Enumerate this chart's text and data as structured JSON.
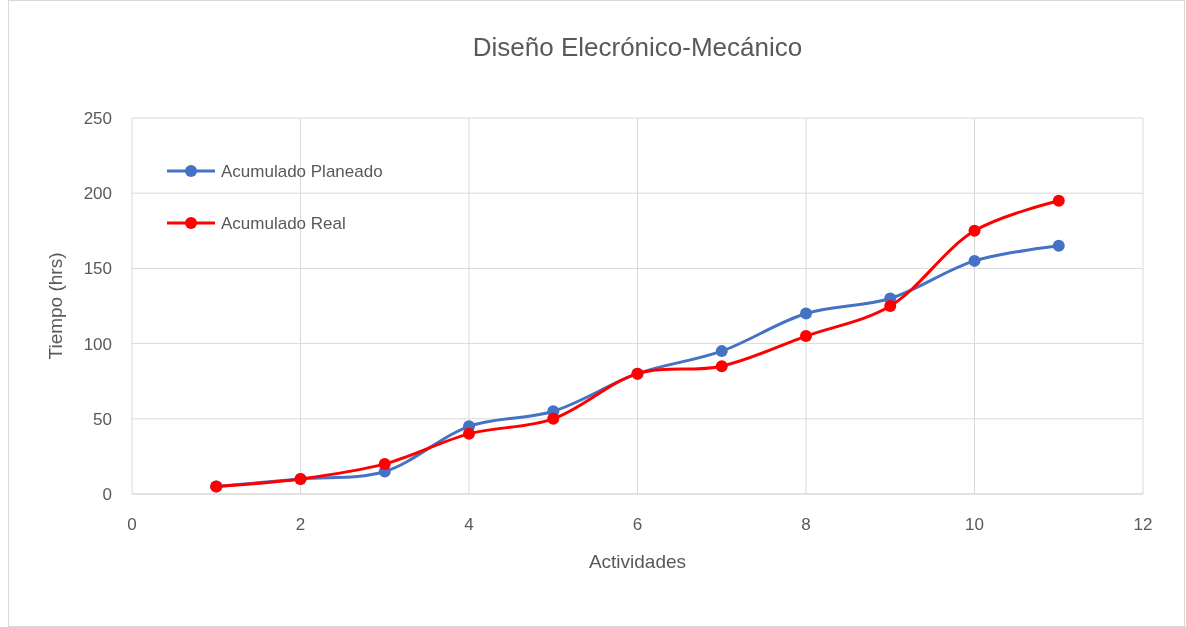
{
  "chart_data": {
    "type": "line",
    "title": "Diseño Elecrónico-Mecánico",
    "xlabel": "Actividades",
    "ylabel": "Tiempo (hrs)",
    "x": [
      1,
      2,
      3,
      4,
      5,
      6,
      7,
      8,
      9,
      10,
      11
    ],
    "series": [
      {
        "name": "Acumulado Planeado",
        "color": "#4472c4",
        "values": [
          5,
          10,
          15,
          45,
          55,
          80,
          95,
          120,
          130,
          155,
          165
        ]
      },
      {
        "name": "Acumulado Real",
        "color": "#ff0000",
        "values": [
          5,
          10,
          20,
          40,
          50,
          80,
          85,
          105,
          125,
          175,
          195
        ]
      }
    ],
    "xlim": [
      0,
      12
    ],
    "xticks": [
      0,
      2,
      4,
      6,
      8,
      10,
      12
    ],
    "ylim": [
      0,
      250
    ],
    "yticks": [
      0,
      50,
      100,
      150,
      200,
      250
    ],
    "grid": true,
    "legend": "top left",
    "marker": "circle",
    "line_style": "solid"
  }
}
